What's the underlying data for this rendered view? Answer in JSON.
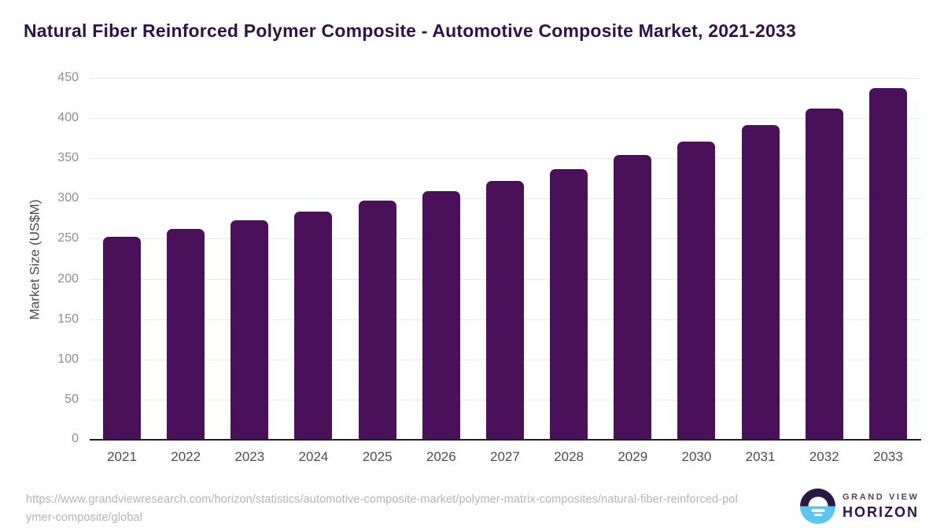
{
  "chart_data": {
    "type": "bar",
    "title": "Natural Fiber Reinforced Polymer Composite - Automotive Composite Market, 2021-2033",
    "xlabel": "",
    "ylabel": "Market Size (US$M)",
    "categories": [
      "2021",
      "2022",
      "2023",
      "2024",
      "2025",
      "2026",
      "2027",
      "2028",
      "2029",
      "2030",
      "2031",
      "2032",
      "2033"
    ],
    "values": [
      253,
      263,
      274,
      285,
      298,
      310,
      323,
      338,
      355,
      372,
      392,
      413,
      438
    ],
    "ylim": [
      0,
      450
    ],
    "ytick_step": 50,
    "yticks": [
      0,
      50,
      100,
      150,
      200,
      250,
      300,
      350,
      400,
      450
    ],
    "grid": true,
    "legend": "none",
    "bar_color": "#4a1059"
  },
  "colors": {
    "title_text": "#311147",
    "bar": "#4a1059",
    "gridline": "#e9e9e9",
    "axis_line": "#1f1f1f",
    "y_tick_text": "#8e8e8e",
    "x_tick_text": "#4d4d4d",
    "source_text": "#b4b4b4",
    "logo_purple": "#2a1a43",
    "logo_blue": "#5ac6f2"
  },
  "footer": {
    "source_url": "https://www.grandviewresearch.com/horizon/statistics/automotive-composite-market/polymer-matrix-composites/natural-fiber-reinforced-polymer-composite/global",
    "logo": {
      "top": "GRAND VIEW",
      "bottom": "HORIZON"
    }
  }
}
